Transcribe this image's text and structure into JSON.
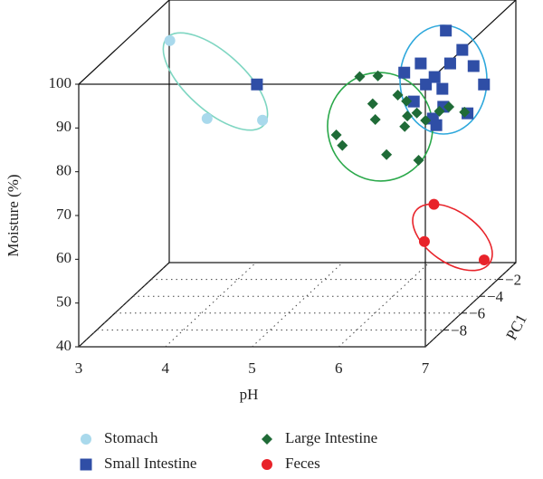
{
  "chart_data": {
    "type": "scatter3d",
    "xlabel": "pH",
    "ylabel": "Moisture (%)",
    "zlabel": "PC1",
    "xlim": [
      3,
      7
    ],
    "xticks": [
      3,
      4,
      5,
      6,
      7
    ],
    "ylim": [
      40,
      100
    ],
    "yticks": [
      40,
      50,
      60,
      70,
      80,
      90,
      100
    ],
    "zlim": [
      -10,
      0
    ],
    "zticks": [
      {
        "value": -8,
        "label": "−8"
      },
      {
        "value": -6,
        "label": "−6"
      },
      {
        "value": -4,
        "label": "−4"
      },
      {
        "value": -2,
        "label": "−2"
      }
    ],
    "series": [
      {
        "name": "Stomach",
        "color": "#a9d9ec",
        "marker": "circle",
        "x": [
          3.32,
          3.75,
          4.39
        ],
        "values": [
          96.5,
          78.7,
          78.3
        ],
        "z": [
          -3,
          -3,
          -3
        ]
      },
      {
        "name": "Small Intestine",
        "color": "#2f4ea6",
        "marker": "square",
        "x": [
          4.43,
          6.61,
          6.8,
          6.32,
          6.66,
          6.93,
          6.13,
          6.48,
          6.57,
          6.38,
          7.05,
          6.24,
          6.58,
          6.46,
          6.86,
          6.5
        ],
        "values": [
          88.4,
          100.7,
          96.3,
          93.2,
          93.2,
          92.6,
          91.1,
          90.1,
          87.4,
          88.4,
          88.4,
          84.5,
          83.3,
          80.6,
          81.8,
          79.1
        ],
        "z": [
          -4,
          -4,
          -4,
          -4,
          -4,
          -4,
          -4,
          -4,
          -4,
          -4,
          -4,
          -4,
          -4,
          -4,
          -4,
          -4
        ]
      },
      {
        "name": "Large Intestine",
        "color": "#1f6b37",
        "marker": "diamond",
        "x": [
          5.72,
          5.93,
          6.16,
          5.87,
          6.26,
          6.38,
          6.24,
          6.48,
          6.64,
          6.75,
          6.93,
          5.9,
          6.27,
          5.45,
          5.52,
          6.03,
          6.4
        ],
        "values": [
          92.1,
          92.3,
          87.9,
          85.9,
          86.5,
          83.8,
          80.7,
          82.1,
          84.2,
          85.2,
          84.0,
          82.3,
          83.1,
          78.8,
          76.4,
          74.3,
          73.0
        ],
        "z": [
          -5,
          -5,
          -5,
          -5,
          -5,
          -5,
          -5,
          -5,
          -5,
          -5,
          -5,
          -5,
          -5,
          -5,
          -5,
          -5,
          -5
        ]
      },
      {
        "name": "Feces",
        "color": "#e8232a",
        "marker": "circle",
        "x": [
          6.89,
          6.78,
          7.47
        ],
        "values": [
          68.7,
          60.2,
          56.0
        ],
        "z": [
          -8,
          -8,
          -8
        ]
      }
    ]
  }
}
